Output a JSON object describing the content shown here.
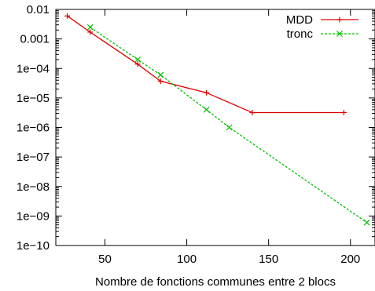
{
  "chart_data": {
    "type": "line",
    "title": "",
    "xlabel": "Nombre de fonctions communes entre 2 blocs",
    "ylabel": "",
    "xlim": [
      20,
      215
    ],
    "ylim": [
      1e-10,
      0.01
    ],
    "yscale": "log",
    "x_ticks": [
      50,
      100,
      150,
      200
    ],
    "x_tick_labels": [
      "50",
      "100",
      "150",
      "200"
    ],
    "y_ticks": [
      0.01,
      0.001,
      0.0001,
      1e-05,
      1e-06,
      1e-07,
      1e-08,
      1e-09,
      1e-10
    ],
    "y_tick_labels": [
      "0.01",
      "0.001",
      "1e−04",
      "1e−05",
      "1e−06",
      "1e−07",
      "1e−08",
      "1e−09",
      "1e−10"
    ],
    "grid": false,
    "legend_position": "top-right",
    "series": [
      {
        "name": "MDD",
        "color": "#e00000",
        "line_style": "solid",
        "marker": "plus",
        "x": [
          27,
          41,
          70,
          84,
          112,
          140,
          196
        ],
        "y": [
          0.006,
          0.0017,
          0.00014,
          3.7e-05,
          1.5e-05,
          3.2e-06,
          3.2e-06
        ]
      },
      {
        "name": "tronc",
        "color": "#00c000",
        "line_style": "dashed",
        "marker": "x",
        "x": [
          41,
          70,
          84,
          112,
          126,
          210
        ],
        "y": [
          0.0025,
          0.0002,
          6e-05,
          4e-06,
          1e-06,
          6e-10
        ]
      }
    ]
  }
}
